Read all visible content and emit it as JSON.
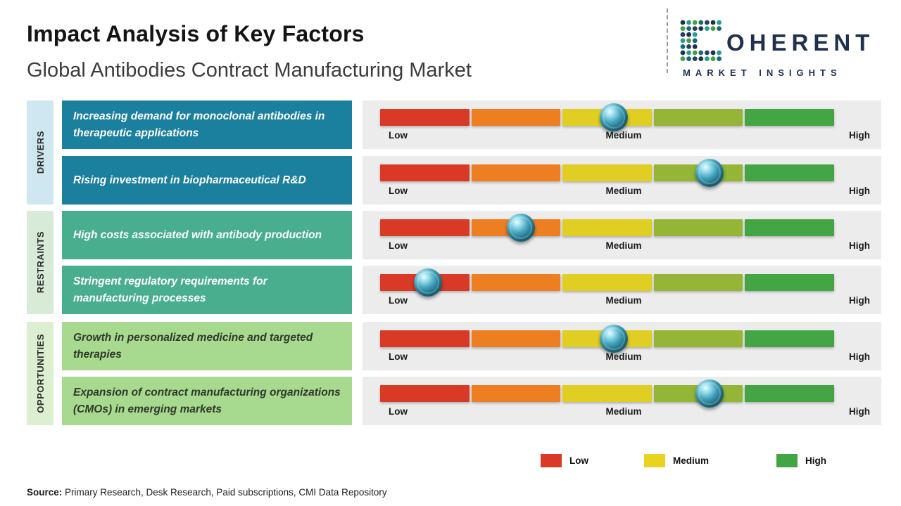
{
  "header": {
    "title": "Impact Analysis of Key Factors",
    "subtitle": "Global Antibodies Contract Manufacturing Market"
  },
  "logo": {
    "brand_rest": "OHERENT",
    "brand_sub": "MARKET INSIGHTS",
    "navy": "#20304f",
    "teal": "#2a9d8f",
    "green": "#43a047"
  },
  "categories": [
    {
      "label": "DRIVERS",
      "color": "#cfe7f1"
    },
    {
      "label": "RESTRAINTS",
      "color": "#d8ebd8"
    },
    {
      "label": "OPPORTUNITIES",
      "color": "#dcefd0"
    }
  ],
  "rows": [
    {
      "label": "Increasing demand for monoclonal antibodies in therapeutic applications",
      "label_bg": "#1b7f9e",
      "label_color": "#ffffff",
      "marker_pct": 51.5,
      "impact_level": "Medium"
    },
    {
      "label": "Rising investment in biopharmaceutical R&D",
      "label_bg": "#1b7f9e",
      "label_color": "#ffffff",
      "marker_pct": 72.5,
      "impact_level": "Medium-High"
    },
    {
      "label": "High costs associated with antibody production",
      "label_bg": "#49ae8d",
      "label_color": "#ffffff",
      "marker_pct": 31,
      "impact_level": "Low-Medium"
    },
    {
      "label": "Stringent regulatory requirements for manufacturing processes",
      "label_bg": "#49ae8d",
      "label_color": "#ffffff",
      "marker_pct": 10.5,
      "impact_level": "Low"
    },
    {
      "label": "Growth in personalized medicine and targeted therapies",
      "label_bg": "#a7d98e",
      "label_color": "#30392c",
      "marker_pct": 51.5,
      "impact_level": "Medium"
    },
    {
      "label": "Expansion of contract manufacturing organizations (CMOs) in emerging markets",
      "label_bg": "#a7d98e",
      "label_color": "#30392c",
      "marker_pct": 72.5,
      "impact_level": "Medium-High"
    }
  ],
  "gauge": {
    "segment_colors": [
      "#d93a26",
      "#ee7e22",
      "#e1ce23",
      "#94b535",
      "#43a544"
    ]
  },
  "scale": {
    "low": "Low",
    "medium": "Medium",
    "high": "High"
  },
  "legend": [
    {
      "label": "Low",
      "color": "#d93a26"
    },
    {
      "label": "Medium",
      "color": "#e8d41e"
    },
    {
      "label": "High",
      "color": "#3fa643"
    }
  ],
  "source": {
    "prefix": "Source:",
    "text": " Primary Research, Desk Research, Paid subscriptions, CMI Data Repository"
  },
  "chart_data": {
    "type": "bar",
    "title": "Impact Analysis of Key Factors",
    "subtitle": "Global Antibodies Contract Manufacturing Market",
    "scale": [
      "Low",
      "Medium",
      "High"
    ],
    "axis_range_pct": [
      0,
      100
    ],
    "legend_position": "bottom",
    "series": [
      {
        "category": "Drivers",
        "factor": "Increasing demand for monoclonal antibodies in therapeutic applications",
        "impact_position_pct": 52,
        "impact_level": "Medium"
      },
      {
        "category": "Drivers",
        "factor": "Rising investment in biopharmaceutical R&D",
        "impact_position_pct": 72,
        "impact_level": "Medium-High"
      },
      {
        "category": "Restraints",
        "factor": "High costs associated with antibody production",
        "impact_position_pct": 31,
        "impact_level": "Low-Medium"
      },
      {
        "category": "Restraints",
        "factor": "Stringent regulatory requirements for manufacturing processes",
        "impact_position_pct": 10,
        "impact_level": "Low"
      },
      {
        "category": "Opportunities",
        "factor": "Growth in personalized medicine and targeted therapies",
        "impact_position_pct": 52,
        "impact_level": "Medium"
      },
      {
        "category": "Opportunities",
        "factor": "Expansion of contract manufacturing organizations (CMOs) in emerging markets",
        "impact_position_pct": 72,
        "impact_level": "Medium-High"
      }
    ]
  }
}
